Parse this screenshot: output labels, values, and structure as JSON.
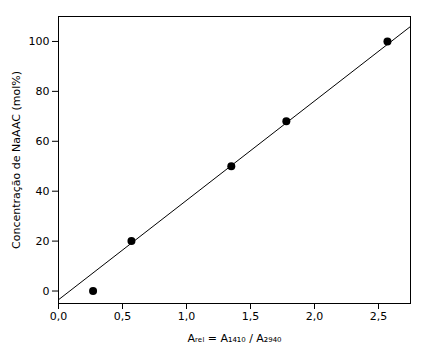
{
  "chart_data": {
    "type": "scatter",
    "xlabel": "Aᵣₑₗ = A₁₄₁₀ / A₂₉₄₀",
    "ylabel": "Concentração de NaAAC (mol%)",
    "series": [
      {
        "type": "line",
        "color": "black",
        "x": [
          0.0,
          2.75
        ],
        "values": [
          -3.5,
          106.0
        ]
      },
      {
        "type": "scatter",
        "color": "black",
        "marker": "circle",
        "x": [
          0.27,
          0.57,
          1.35,
          1.78,
          2.57
        ],
        "values": [
          0,
          20,
          50,
          68,
          100
        ]
      }
    ],
    "xlim": [
      0.0,
      2.75
    ],
    "ylim": [
      -5,
      110
    ],
    "xticks": [
      {
        "value": 0.0,
        "label": "0,0"
      },
      {
        "value": 0.5,
        "label": "0,5"
      },
      {
        "value": 1.0,
        "label": "1,0"
      },
      {
        "value": 1.5,
        "label": "1,5"
      },
      {
        "value": 2.0,
        "label": "2,0"
      },
      {
        "value": 2.5,
        "label": "2,5"
      }
    ],
    "yticks": [
      0,
      20,
      40,
      60,
      80,
      100
    ],
    "grid": false
  }
}
